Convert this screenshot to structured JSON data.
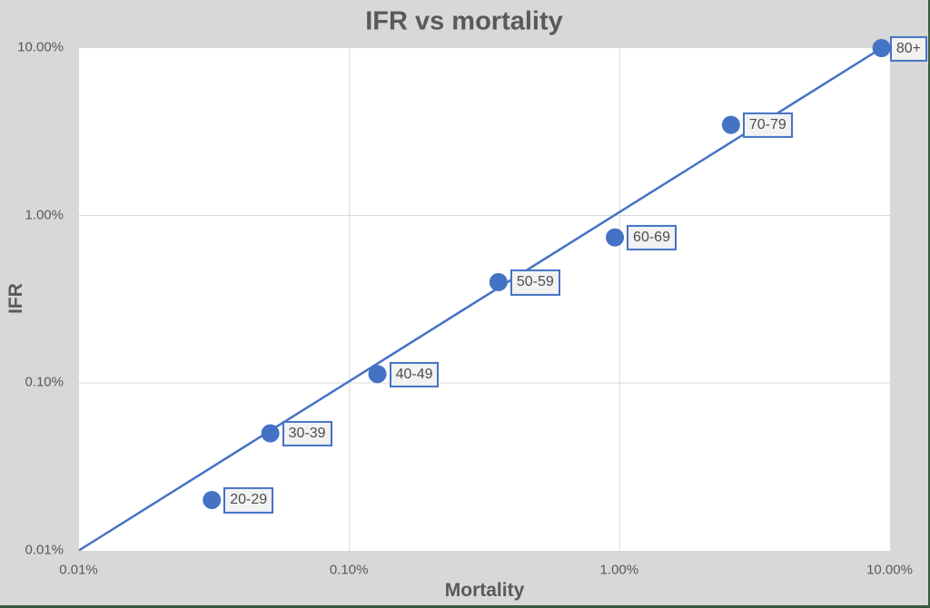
{
  "chart_data": {
    "type": "scatter",
    "title": "IFR vs mortality",
    "xlabel": "Mortality",
    "ylabel": "IFR",
    "x_scale": "log",
    "y_scale": "log",
    "xlim_percent": [
      0.01,
      10
    ],
    "ylim_percent": [
      0.01,
      10
    ],
    "x_tick_labels": [
      "0.01%",
      "0.10%",
      "1.00%",
      "10.00%"
    ],
    "y_tick_labels": [
      "0.01%",
      "0.10%",
      "1.00%",
      "10.00%"
    ],
    "x_tick_values": [
      0.01,
      0.1,
      1,
      10
    ],
    "y_tick_values": [
      0.01,
      0.1,
      1,
      10
    ],
    "grid": true,
    "legend": false,
    "units": "%",
    "points": [
      {
        "label": "20-29",
        "mortality": 0.031,
        "ifr": 0.02
      },
      {
        "label": "30-39",
        "mortality": 0.051,
        "ifr": 0.05
      },
      {
        "label": "40-49",
        "mortality": 0.127,
        "ifr": 0.113
      },
      {
        "label": "50-59",
        "mortality": 0.356,
        "ifr": 0.4
      },
      {
        "label": "60-69",
        "mortality": 0.96,
        "ifr": 0.74
      },
      {
        "label": "70-79",
        "mortality": 2.58,
        "ifr": 3.48
      },
      {
        "label": "80+",
        "mortality": 9.3,
        "ifr": 10.0
      }
    ],
    "trend_line": {
      "x1_percent": 0.01,
      "y1_percent": 0.01,
      "x2_percent": 9.3,
      "y2_percent": 10.0
    }
  },
  "colors": {
    "background": "#d8d8d8",
    "plot_background": "#ffffff",
    "gridline": "#d9d9d9",
    "series": "#4472c4",
    "label_fill": "#f2f2f2",
    "label_border": "#4472c4",
    "label_text": "#4d4d4d",
    "text": "#595959",
    "frame_border": "#365a3e"
  }
}
